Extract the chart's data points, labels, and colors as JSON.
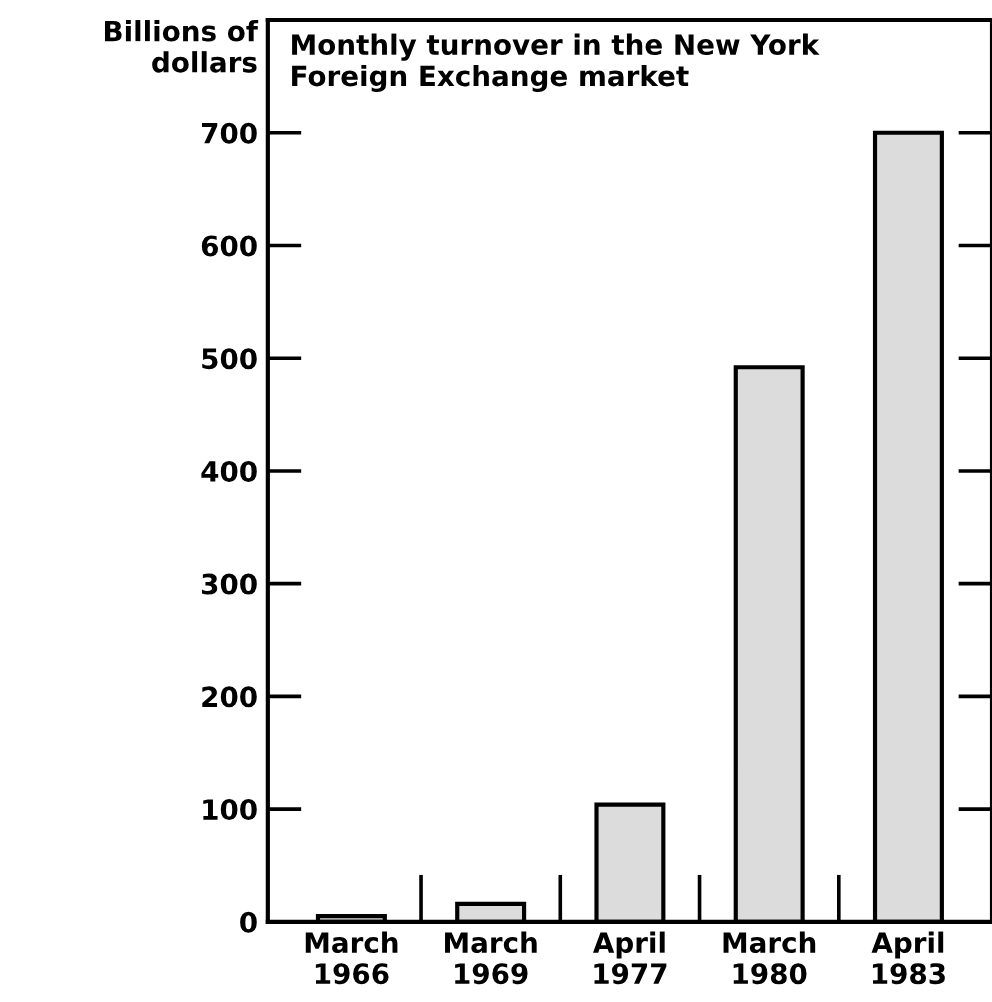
{
  "chart_data": {
    "type": "bar",
    "title": "Monthly turnover in the New York\nForeign Exchange market",
    "ylabel": "Billions of\ndollars",
    "categories": [
      "March\n1966",
      "March\n1969",
      "April\n1977",
      "March\n1980",
      "April\n1983"
    ],
    "values": [
      5,
      16,
      104,
      492,
      700
    ],
    "color": "#dcdcdc",
    "ylim": [
      0,
      800
    ],
    "yticks": [
      0,
      100,
      200,
      300,
      400,
      500,
      600,
      700
    ],
    "grid": false,
    "legend": false
  }
}
